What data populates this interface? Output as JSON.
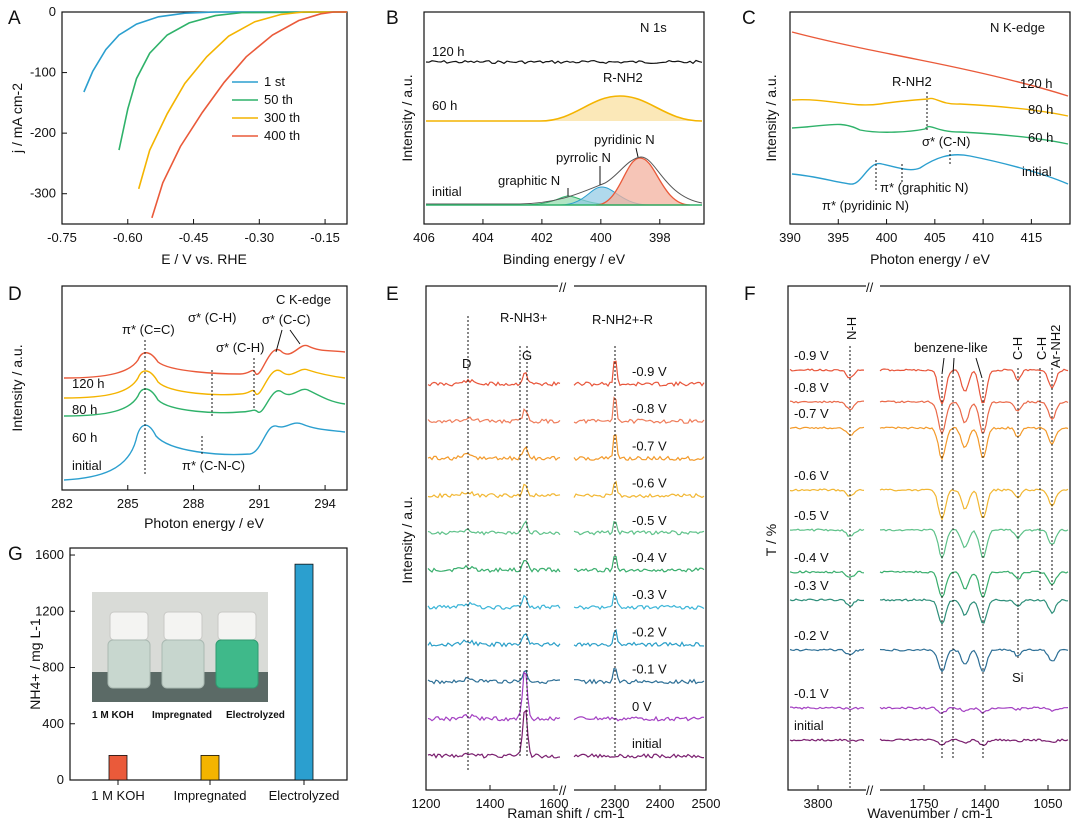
{
  "figure": {
    "colors": {
      "blue": "#2b9fcf",
      "green": "#2fb26a",
      "yellow": "#f4b400",
      "red": "#ea5a3a",
      "black": "#111111"
    }
  },
  "chart_data": [
    {
      "panel": "A",
      "type": "line",
      "xlabel": "E / V vs. RHE",
      "ylabel": "j / mA cm-2",
      "xlim": [
        -0.75,
        -0.1
      ],
      "ylim": [
        -350,
        0
      ],
      "xticks": [
        "-0.75",
        "-0.60",
        "-0.45",
        "-0.30",
        "-0.15"
      ],
      "xtick_values": [
        -0.75,
        -0.6,
        -0.45,
        -0.3,
        -0.15
      ],
      "yticks": [
        "0",
        "-100",
        "-200",
        "-300"
      ],
      "ytick_values": [
        0,
        -100,
        -200,
        -300
      ],
      "legend_position": "center-right",
      "series": [
        {
          "name": "1 st",
          "color": "#2b9fcf",
          "points": [
            [
              -0.7,
              -132
            ],
            [
              -0.68,
              -98
            ],
            [
              -0.65,
              -62
            ],
            [
              -0.62,
              -38
            ],
            [
              -0.58,
              -20
            ],
            [
              -0.53,
              -8
            ],
            [
              -0.47,
              -2
            ],
            [
              -0.4,
              0
            ],
            [
              -0.1,
              0
            ]
          ]
        },
        {
          "name": "50 th",
          "color": "#2fb26a",
          "points": [
            [
              -0.62,
              -228
            ],
            [
              -0.6,
              -160
            ],
            [
              -0.58,
              -110
            ],
            [
              -0.55,
              -68
            ],
            [
              -0.51,
              -38
            ],
            [
              -0.46,
              -18
            ],
            [
              -0.4,
              -6
            ],
            [
              -0.34,
              -1
            ],
            [
              -0.1,
              0
            ]
          ]
        },
        {
          "name": "300 th",
          "color": "#f4b400",
          "points": [
            [
              -0.575,
              -292
            ],
            [
              -0.55,
              -228
            ],
            [
              -0.51,
              -168
            ],
            [
              -0.47,
              -118
            ],
            [
              -0.42,
              -74
            ],
            [
              -0.37,
              -40
            ],
            [
              -0.31,
              -16
            ],
            [
              -0.25,
              -4
            ],
            [
              -0.2,
              0
            ],
            [
              -0.1,
              0
            ]
          ]
        },
        {
          "name": "400 th",
          "color": "#ea5a3a",
          "points": [
            [
              -0.545,
              -340
            ],
            [
              -0.52,
              -282
            ],
            [
              -0.48,
              -222
            ],
            [
              -0.43,
              -166
            ],
            [
              -0.38,
              -116
            ],
            [
              -0.33,
              -74
            ],
            [
              -0.27,
              -38
            ],
            [
              -0.21,
              -14
            ],
            [
              -0.16,
              -3
            ],
            [
              -0.13,
              0
            ],
            [
              -0.1,
              0
            ]
          ]
        }
      ]
    },
    {
      "panel": "B",
      "type": "line",
      "title": "N 1s",
      "xlabel": "Binding energy / eV",
      "ylabel": "Intensity / a.u.",
      "xlim": [
        406,
        396.5
      ],
      "xticks": [
        "406",
        "404",
        "402",
        "400",
        "398"
      ],
      "xtick_values": [
        406,
        404,
        402,
        400,
        398
      ],
      "series": [
        {
          "name": "120 h",
          "color": "#111111",
          "style": "noisy-flat"
        },
        {
          "name": "60 h",
          "color": "#f4b400",
          "peak": {
            "label": "R-NH2",
            "center": 398.9,
            "width": 1.3
          }
        },
        {
          "name": "initial",
          "color": "#2fb26a",
          "peaks": [
            {
              "label": "pyridinic N",
              "center": 398.7,
              "color": "#ea5a3a"
            },
            {
              "label": "pyrrolic N",
              "center": 400.1,
              "color": "#2b9fcf"
            },
            {
              "label": "graphitic N",
              "center": 401.2,
              "color": "#2fb26a"
            }
          ]
        }
      ],
      "annotations": [
        "R-NH2",
        "pyridinic N",
        "pyrrolic N",
        "graphitic N"
      ]
    },
    {
      "panel": "C",
      "type": "line",
      "title": "N K-edge",
      "xlabel": "Photon energy / eV",
      "ylabel": "Intensity / a.u.",
      "xlim": [
        390,
        419
      ],
      "xticks": [
        "390",
        "395",
        "400",
        "405",
        "410",
        "415"
      ],
      "xtick_values": [
        390,
        395,
        400,
        405,
        410,
        415
      ],
      "series": [
        {
          "name": "120 h",
          "color": "#ea5a3a"
        },
        {
          "name": "80 h",
          "color": "#f4b400"
        },
        {
          "name": "60 h",
          "color": "#2fb26a"
        },
        {
          "name": "initial",
          "color": "#2b9fcf"
        }
      ],
      "annotations": [
        "R-NH2",
        "σ* (C-N)",
        "π* (graphitic N)",
        "π* (pyridinic N)"
      ]
    },
    {
      "panel": "D",
      "type": "line",
      "title": "C K-edge",
      "xlabel": "Photon energy / eV",
      "ylabel": "Intensity / a.u.",
      "xlim": [
        282,
        295
      ],
      "xticks": [
        "282",
        "285",
        "288",
        "291",
        "294"
      ],
      "xtick_values": [
        282,
        285,
        288,
        291,
        294
      ],
      "series": [
        {
          "name": "120 h",
          "color": "#ea5a3a"
        },
        {
          "name": "80 h",
          "color": "#f4b400"
        },
        {
          "name": "60 h",
          "color": "#2fb26a"
        },
        {
          "name": "initial",
          "color": "#2b9fcf"
        }
      ],
      "annotations": [
        "π* (C=C)",
        "σ* (C-H)",
        "σ* (C-H)",
        "σ* (C-C)",
        "π* (C-N-C)"
      ]
    },
    {
      "panel": "E",
      "type": "line",
      "xlabel": "Raman shift / cm-1",
      "ylabel": "Intensity / a.u.",
      "xticks": [
        "1200",
        "1400",
        "1600",
        "2300",
        "2400",
        "2500"
      ],
      "axis_break": [
        1680,
        2200
      ],
      "series_labels": [
        "-0.9 V",
        "-0.8 V",
        "-0.7 V",
        "-0.6 V",
        "-0.5 V",
        "-0.4 V",
        "-0.3 V",
        "-0.2 V",
        "-0.1 V",
        "0 V",
        "initial"
      ],
      "series_colors": [
        "#e8553a",
        "#ef7d5b",
        "#f39a2a",
        "#f2b733",
        "#5fc28a",
        "#39ae6d",
        "#3bb5d8",
        "#2a9fc8",
        "#2d6f96",
        "#a33fc2",
        "#7a1f6f"
      ],
      "annotations": [
        "D",
        "G",
        "R-NH3+",
        "R-NH2+-R"
      ]
    },
    {
      "panel": "F",
      "type": "line",
      "xlabel": "Wavenumber / cm-1",
      "ylabel": "T / %",
      "xticks": [
        "3800",
        "1750",
        "1400",
        "1050"
      ],
      "axis_break": [
        3500,
        1900
      ],
      "series_labels": [
        "-0.9 V",
        "-0.8 V",
        "-0.7 V",
        "-0.6 V",
        "-0.5 V",
        "-0.4 V",
        "-0.3 V",
        "-0.2 V",
        "-0.1 V",
        "initial"
      ],
      "series_colors": [
        "#e8553a",
        "#ea6a4a",
        "#f39a2a",
        "#f2b733",
        "#5fc28a",
        "#39ae6d",
        "#2e8f7a",
        "#2d6f96",
        "#a33fc2",
        "#7a1f6f"
      ],
      "annotations": [
        "N-H",
        "benzene-like",
        "C-H",
        "C-H",
        "Ar-NH2",
        "Si"
      ]
    },
    {
      "panel": "G",
      "type": "bar",
      "xlabel": "",
      "ylabel": "NH4+ / mg L-1",
      "categories": [
        "1 M KOH",
        "Impregnated",
        "Electrolyzed"
      ],
      "values": [
        175,
        175,
        1535
      ],
      "colors": [
        "#ea5a3a",
        "#f4b400",
        "#2b9fcf"
      ],
      "ylim": [
        0,
        1650
      ],
      "yticks": [
        "0",
        "400",
        "800",
        "1200",
        "1600"
      ],
      "ytick_values": [
        0,
        400,
        800,
        1200,
        1600
      ],
      "photo_labels": [
        "1 M KOH",
        "Impregnated",
        "Electrolyzed"
      ]
    }
  ]
}
